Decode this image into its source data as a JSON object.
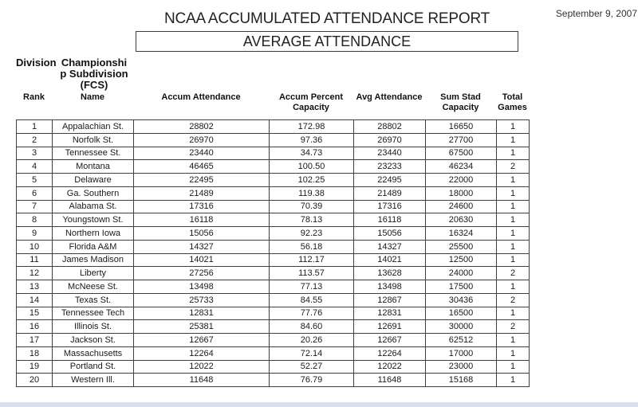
{
  "page": {
    "date": "September 9, 2007",
    "title": "NCAA ACCUMULATED ATTENDANCE REPORT",
    "subtitle": "AVERAGE ATTENDANCE"
  },
  "section": {
    "division_label": "Division",
    "subdivision_label": "Championshi\np Subdivision\n(FCS)",
    "subdivision_full_text": "Championship Subdivision (FCS)"
  },
  "table": {
    "columns": [
      "Rank",
      "Name",
      "Accum Attendance",
      "Accum Percent Capacity",
      "Avg Attendance",
      "Sum Stad Capacity",
      "Total Games"
    ],
    "rows": [
      [
        "1",
        "Appalachian St.",
        "28802",
        "172.98",
        "28802",
        "16650",
        "1"
      ],
      [
        "2",
        "Norfolk St.",
        "26970",
        "97.36",
        "26970",
        "27700",
        "1"
      ],
      [
        "3",
        "Tennessee St.",
        "23440",
        "34.73",
        "23440",
        "67500",
        "1"
      ],
      [
        "4",
        "Montana",
        "46465",
        "100.50",
        "23233",
        "46234",
        "2"
      ],
      [
        "5",
        "Delaware",
        "22495",
        "102.25",
        "22495",
        "22000",
        "1"
      ],
      [
        "6",
        "Ga. Southern",
        "21489",
        "119.38",
        "21489",
        "18000",
        "1"
      ],
      [
        "7",
        "Alabama St.",
        "17316",
        "70.39",
        "17316",
        "24600",
        "1"
      ],
      [
        "8",
        "Youngstown St.",
        "16118",
        "78.13",
        "16118",
        "20630",
        "1"
      ],
      [
        "9",
        "Northern Iowa",
        "15056",
        "92.23",
        "15056",
        "16324",
        "1"
      ],
      [
        "10",
        "Florida A&M",
        "14327",
        "56.18",
        "14327",
        "25500",
        "1"
      ],
      [
        "11",
        "James Madison",
        "14021",
        "112.17",
        "14021",
        "12500",
        "1"
      ],
      [
        "12",
        "Liberty",
        "27256",
        "113.57",
        "13628",
        "24000",
        "2"
      ],
      [
        "13",
        "McNeese St.",
        "13498",
        "77.13",
        "13498",
        "17500",
        "1"
      ],
      [
        "14",
        "Texas St.",
        "25733",
        "84.55",
        "12867",
        "30436",
        "2"
      ],
      [
        "15",
        "Tennessee Tech",
        "12831",
        "77.76",
        "12831",
        "16500",
        "1"
      ],
      [
        "16",
        "Illinois St.",
        "25381",
        "84.60",
        "12691",
        "30000",
        "2"
      ],
      [
        "17",
        "Jackson St.",
        "12667",
        "20.26",
        "12667",
        "62512",
        "1"
      ],
      [
        "18",
        "Massachusetts",
        "12264",
        "72.14",
        "12264",
        "17000",
        "1"
      ],
      [
        "19",
        "Portland St.",
        "12022",
        "52.27",
        "12022",
        "23000",
        "1"
      ],
      [
        "20",
        "Western Ill.",
        "11648",
        "76.79",
        "11648",
        "15168",
        "1"
      ]
    ]
  },
  "colors": {
    "border": "#3f3f3f",
    "bottom_strip": "#d9e0eb",
    "background": "#ffffff"
  }
}
